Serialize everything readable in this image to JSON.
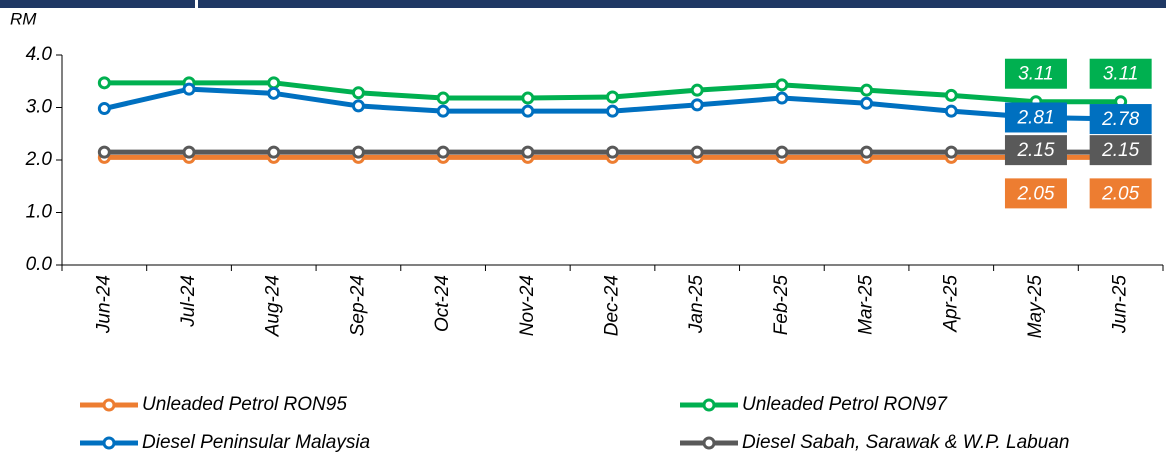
{
  "chart_data": {
    "type": "line",
    "ylabel": "RM",
    "categories": [
      "Jun-24",
      "Jul-24",
      "Aug-24",
      "Sep-24",
      "Oct-24",
      "Nov-24",
      "Dec-24",
      "Jan-25",
      "Feb-25",
      "Mar-25",
      "Apr-25",
      "May-25",
      "Jun-25"
    ],
    "series": [
      {
        "name": "Unleaded Petrol RON95",
        "color": "#ed7d31",
        "values": [
          2.05,
          2.05,
          2.05,
          2.05,
          2.05,
          2.05,
          2.05,
          2.05,
          2.05,
          2.05,
          2.05,
          2.05,
          2.05
        ]
      },
      {
        "name": "Unleaded Petrol RON97",
        "color": "#00b050",
        "values": [
          3.47,
          3.47,
          3.47,
          3.28,
          3.18,
          3.18,
          3.2,
          3.33,
          3.43,
          3.33,
          3.23,
          3.11,
          3.11
        ]
      },
      {
        "name": "Diesel Peninsular Malaysia",
        "color": "#0070c0",
        "values": [
          2.98,
          3.35,
          3.27,
          3.03,
          2.93,
          2.93,
          2.93,
          3.05,
          3.18,
          3.08,
          2.93,
          2.81,
          2.78
        ]
      },
      {
        "name": "Diesel Sabah, Sarawak & W.P. Labuan",
        "color": "#595959",
        "values": [
          2.15,
          2.15,
          2.15,
          2.15,
          2.15,
          2.15,
          2.15,
          2.15,
          2.15,
          2.15,
          2.15,
          2.15,
          2.15
        ]
      }
    ],
    "ylim": [
      0,
      4
    ],
    "yticks": [
      {
        "value": 0,
        "label": "0.0"
      },
      {
        "value": 1,
        "label": "1.0"
      },
      {
        "value": 2,
        "label": "2.0"
      },
      {
        "value": 3,
        "label": "3.0"
      },
      {
        "value": 4,
        "label": "4.0"
      }
    ]
  }
}
